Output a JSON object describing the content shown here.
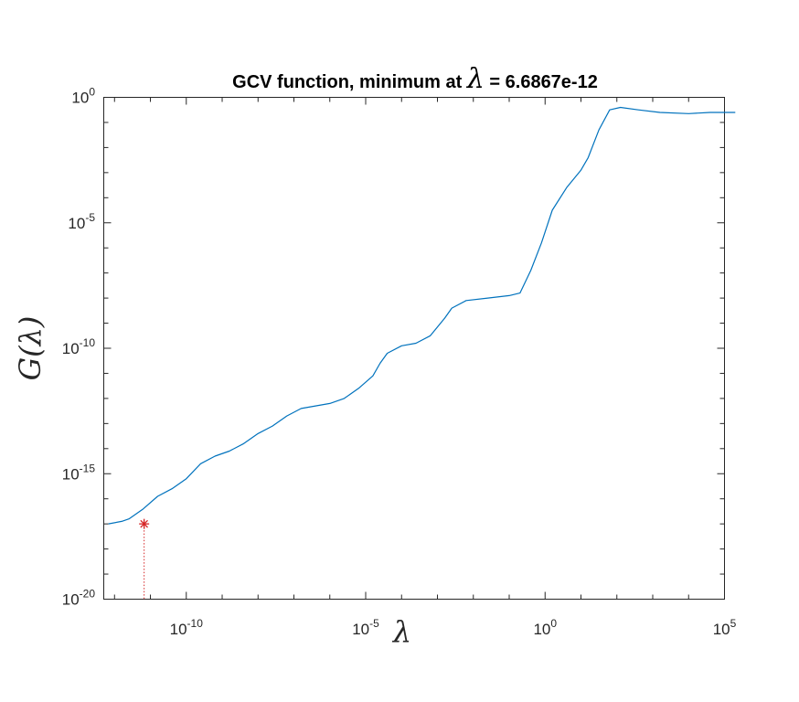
{
  "chart_data": {
    "type": "line",
    "title": {
      "prefix": "GCV function, minimum at ",
      "symbol": "λ",
      "suffix": " = 6.6867e-12"
    },
    "xlabel": "λ",
    "ylabel": "G(λ)",
    "xscale": "log",
    "yscale": "log",
    "xlim_exp": [
      -12.3,
      5
    ],
    "ylim_exp": [
      -20,
      0
    ],
    "xticks": [
      {
        "base": "10",
        "exp": "-10",
        "value_exp": -10
      },
      {
        "base": "10",
        "exp": "-5",
        "value_exp": -5
      },
      {
        "base": "10",
        "exp": "0",
        "value_exp": 0
      },
      {
        "base": "10",
        "exp": "5",
        "value_exp": 5
      }
    ],
    "yticks": [
      {
        "base": "10",
        "exp": "0",
        "value_exp": 0
      },
      {
        "base": "10",
        "exp": "-5",
        "value_exp": -5
      },
      {
        "base": "10",
        "exp": "-10",
        "value_exp": -10
      },
      {
        "base": "10",
        "exp": "-15",
        "value_exp": -15
      },
      {
        "base": "10",
        "exp": "-20",
        "value_exp": -20
      }
    ],
    "grid": false,
    "series": [
      {
        "color": "#0072bd",
        "points_log10": [
          [
            -12.17,
            -17.0
          ],
          [
            -11.8,
            -16.9
          ],
          [
            -11.6,
            -16.8
          ],
          [
            -11.2,
            -16.4
          ],
          [
            -10.8,
            -15.9
          ],
          [
            -10.4,
            -15.6
          ],
          [
            -10.0,
            -15.2
          ],
          [
            -9.6,
            -14.6
          ],
          [
            -9.2,
            -14.3
          ],
          [
            -8.8,
            -14.1
          ],
          [
            -8.4,
            -13.8
          ],
          [
            -8.0,
            -13.4
          ],
          [
            -7.6,
            -13.1
          ],
          [
            -7.2,
            -12.7
          ],
          [
            -6.8,
            -12.4
          ],
          [
            -6.4,
            -12.3
          ],
          [
            -6.0,
            -12.2
          ],
          [
            -5.6,
            -12.0
          ],
          [
            -5.2,
            -11.6
          ],
          [
            -4.8,
            -11.1
          ],
          [
            -4.6,
            -10.6
          ],
          [
            -4.4,
            -10.2
          ],
          [
            -4.0,
            -9.9
          ],
          [
            -3.6,
            -9.8
          ],
          [
            -3.2,
            -9.5
          ],
          [
            -2.8,
            -8.8
          ],
          [
            -2.6,
            -8.4
          ],
          [
            -2.2,
            -8.1
          ],
          [
            -1.6,
            -8.0
          ],
          [
            -1.0,
            -7.9
          ],
          [
            -0.7,
            -7.8
          ],
          [
            -0.4,
            -6.9
          ],
          [
            -0.1,
            -5.8
          ],
          [
            0.2,
            -4.5
          ],
          [
            0.6,
            -3.6
          ],
          [
            1.0,
            -2.9
          ],
          [
            1.2,
            -2.4
          ],
          [
            1.5,
            -1.3
          ],
          [
            1.8,
            -0.5
          ],
          [
            2.1,
            -0.4
          ],
          [
            2.6,
            -0.5
          ],
          [
            3.2,
            -0.6
          ],
          [
            4.0,
            -0.65
          ],
          [
            4.6,
            -0.6
          ],
          [
            5.0,
            -0.6
          ],
          [
            5.3,
            -0.6
          ]
        ]
      }
    ],
    "minimum_marker": {
      "x": 6.6867e-12,
      "color": "#d62728",
      "marker": "asterisk"
    }
  }
}
